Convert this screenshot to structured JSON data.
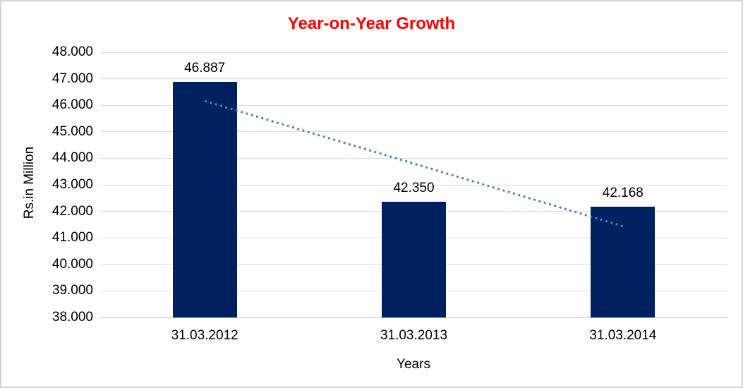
{
  "chart_data": {
    "type": "bar",
    "title": "Year-on-Year Growth",
    "title_color": "#ff0000",
    "xlabel": "Years",
    "ylabel": "Rs.in Million",
    "categories": [
      "31.03.2012",
      "31.03.2013",
      "31.03.2014"
    ],
    "values": [
      46.887,
      42.35,
      42.168
    ],
    "data_labels": [
      "46.887",
      "42.350",
      "42.168"
    ],
    "ylim": [
      38,
      48
    ],
    "ytick_step": 1,
    "ytick_labels": [
      "38.000",
      "39.000",
      "40.000",
      "41.000",
      "42.000",
      "43.000",
      "44.000",
      "45.000",
      "46.000",
      "47.000",
      "48.000"
    ],
    "grid": true,
    "legend": false,
    "bar_color": "#002060",
    "gridline_color": "#d9d9d9",
    "axis_line_color": "#c6c6c6",
    "text_color": "#000000",
    "trendline": {
      "type": "linear",
      "style": "dotted",
      "color": "#4f81bd",
      "start_value": 46.16,
      "end_value": 41.44
    }
  }
}
